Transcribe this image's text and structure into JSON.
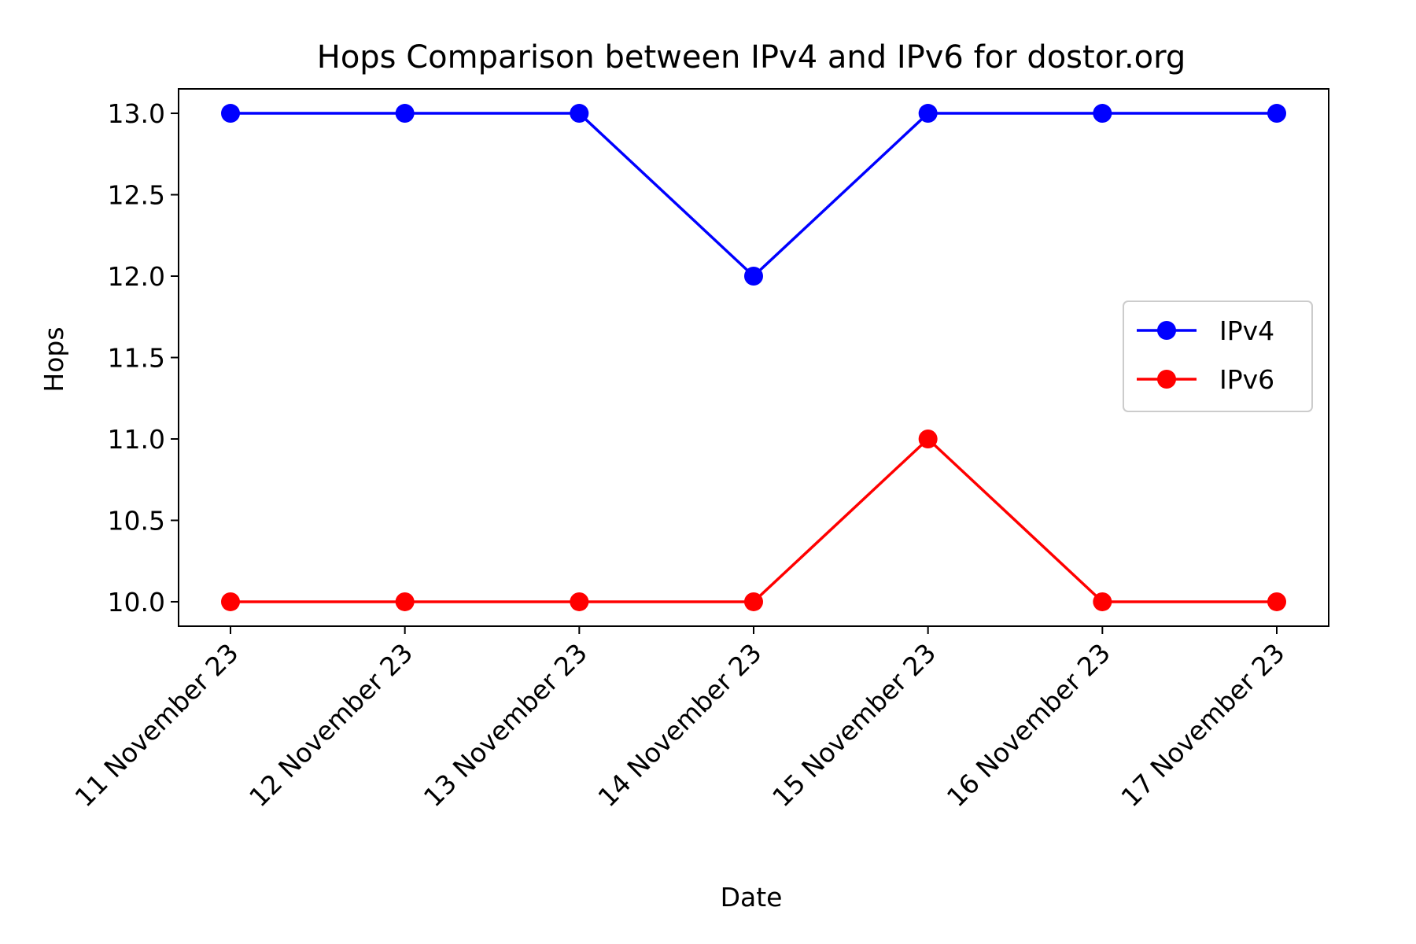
{
  "chart_data": {
    "type": "line",
    "title": "Hops Comparison between IPv4 and IPv6 for dostor.org",
    "xlabel": "Date",
    "ylabel": "Hops",
    "categories": [
      "11 November 23",
      "12 November 23",
      "13 November 23",
      "14 November 23",
      "15 November 23",
      "16 November 23",
      "17 November 23"
    ],
    "ylim": [
      9.85,
      13.15
    ],
    "yticks": [
      10.0,
      10.5,
      11.0,
      11.5,
      12.0,
      12.5,
      13.0
    ],
    "ytick_labels": [
      "10.0",
      "10.5",
      "11.0",
      "11.5",
      "12.0",
      "12.5",
      "13.0"
    ],
    "grid": false,
    "legend_position": "center-right",
    "series": [
      {
        "name": "IPv4",
        "color": "#0000ff",
        "marker": "circle",
        "values": [
          13,
          13,
          13,
          12,
          13,
          13,
          13
        ]
      },
      {
        "name": "IPv6",
        "color": "#ff0000",
        "marker": "circle",
        "values": [
          10,
          10,
          10,
          10,
          11,
          10,
          10
        ]
      }
    ]
  }
}
